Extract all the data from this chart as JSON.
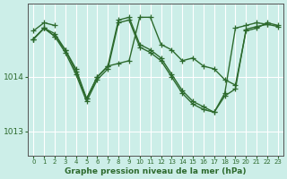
{
  "background_color": "#cceee8",
  "grid_color": "#ffffff",
  "line_color": "#2d6a2d",
  "marker": "+",
  "marker_size": 4,
  "line_width": 1.0,
  "title": "Graphe pression niveau de la mer (hPa)",
  "xlim": [
    -0.5,
    23.5
  ],
  "ylim": [
    1012.55,
    1015.35
  ],
  "yticks": [
    1013,
    1014
  ],
  "xticks": [
    0,
    1,
    2,
    3,
    4,
    5,
    6,
    7,
    8,
    9,
    10,
    11,
    12,
    13,
    14,
    15,
    16,
    17,
    18,
    19,
    20,
    21,
    22,
    23
  ],
  "series": [
    [
      1014.85,
      1015.0,
      1014.95,
      null,
      null,
      null,
      null,
      null,
      null,
      null,
      null,
      null,
      null,
      null,
      null,
      null,
      null,
      null,
      null,
      null,
      null,
      null,
      null,
      null
    ],
    [
      1014.7,
      1014.9,
      1014.8,
      1014.5,
      1014.15,
      1013.6,
      1014.0,
      1014.2,
      1014.25,
      1014.3,
      1015.1,
      1015.1,
      1014.6,
      1014.5,
      1014.3,
      1014.35,
      1014.2,
      1014.15,
      1013.95,
      1013.85,
      1014.85,
      1014.9,
      1015.0,
      1014.95
    ],
    [
      1014.7,
      1014.9,
      1014.75,
      1014.5,
      1014.1,
      1013.6,
      1014.0,
      1014.2,
      1015.05,
      1015.1,
      1014.6,
      1014.5,
      1014.35,
      1014.05,
      1013.75,
      1013.55,
      1013.45,
      1013.35,
      1013.7,
      1014.9,
      1014.95,
      1015.0,
      1014.97,
      null
    ],
    [
      1014.7,
      1014.9,
      1014.75,
      1014.45,
      1014.05,
      1013.55,
      1013.95,
      1014.15,
      1015.0,
      1015.05,
      1014.55,
      1014.45,
      1014.3,
      1014.0,
      1013.7,
      1013.5,
      1013.4,
      1013.35,
      1013.65,
      1013.78,
      1014.88,
      1014.93,
      1014.97,
      1014.93
    ]
  ]
}
